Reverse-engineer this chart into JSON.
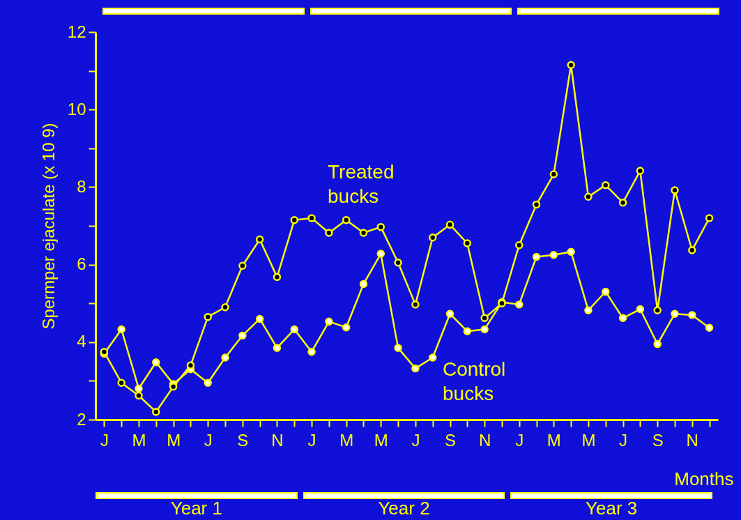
{
  "chart_data": {
    "type": "line",
    "xlabel": "Months",
    "ylabel": "Spermper ejaculate (x 10 9)",
    "categories": [
      "J",
      null,
      "M",
      null,
      "M",
      null,
      "J",
      null,
      "S",
      null,
      "N",
      null,
      "J",
      null,
      "M",
      null,
      "M",
      null,
      "J",
      null,
      "S",
      null,
      "N",
      null,
      "J",
      null,
      "M",
      null,
      "M",
      null,
      "J",
      null,
      "S",
      null,
      "N",
      null
    ],
    "series": [
      {
        "name": "Treated bucks",
        "color": "#ffff00",
        "values": [
          3.75,
          2.95,
          2.62,
          2.2,
          2.85,
          3.4,
          4.65,
          4.9,
          5.97,
          6.65,
          5.68,
          7.15,
          7.2,
          6.82,
          7.15,
          6.82,
          6.97,
          6.05,
          4.97,
          6.7,
          7.03,
          6.55,
          4.62,
          5.0,
          6.5,
          7.55,
          8.33,
          11.15,
          7.75,
          8.05,
          7.6,
          8.42,
          4.82,
          7.92,
          6.37,
          7.2
        ]
      },
      {
        "name": "Control bucks",
        "color": "#ffff00",
        "values": [
          3.7,
          4.33,
          2.8,
          3.48,
          2.92,
          3.3,
          2.95,
          3.6,
          4.17,
          4.6,
          3.85,
          4.33,
          3.75,
          4.53,
          4.38,
          5.5,
          6.28,
          3.85,
          3.32,
          3.6,
          4.73,
          4.28,
          4.33,
          5.03,
          4.97,
          6.2,
          6.25,
          6.33,
          4.82,
          5.3,
          4.62,
          4.85,
          3.95,
          4.73,
          4.7,
          4.37
        ]
      }
    ],
    "ylim": [
      2,
      12
    ],
    "yticks": [
      2,
      {
        "value": 3,
        "label": null
      },
      4,
      {
        "value": 5,
        "label": null
      },
      6,
      {
        "value": 7,
        "label": null
      },
      8,
      {
        "value": 9,
        "label": null
      },
      10,
      {
        "value": 11,
        "label": null
      },
      12
    ],
    "annotations": [
      "Year 1",
      "Year 2",
      "Year 3"
    ],
    "marker": "circle",
    "line_style": "solid",
    "legend": false,
    "grid": false
  }
}
